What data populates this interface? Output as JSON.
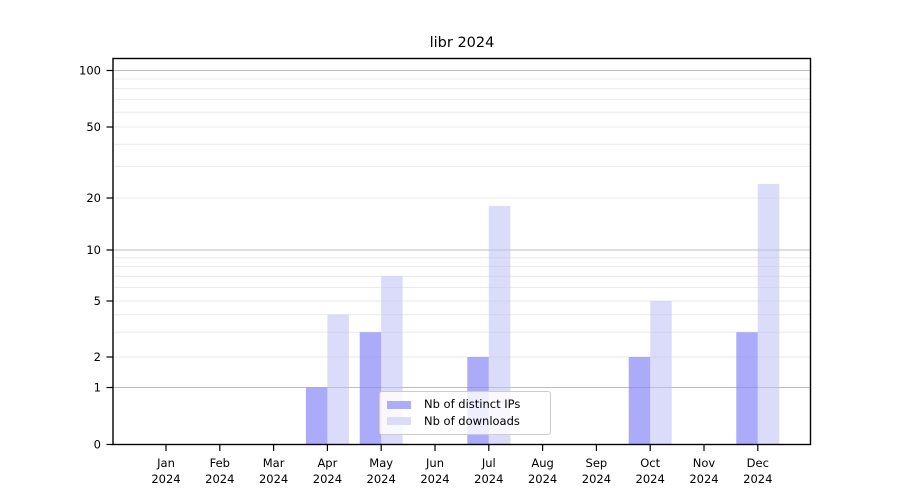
{
  "chart_data": {
    "type": "bar",
    "title": "libr 2024",
    "x_categories": [
      {
        "month": "Jan",
        "year": "2024"
      },
      {
        "month": "Feb",
        "year": "2024"
      },
      {
        "month": "Mar",
        "year": "2024"
      },
      {
        "month": "Apr",
        "year": "2024"
      },
      {
        "month": "May",
        "year": "2024"
      },
      {
        "month": "Jun",
        "year": "2024"
      },
      {
        "month": "Jul",
        "year": "2024"
      },
      {
        "month": "Aug",
        "year": "2024"
      },
      {
        "month": "Sep",
        "year": "2024"
      },
      {
        "month": "Oct",
        "year": "2024"
      },
      {
        "month": "Nov",
        "year": "2024"
      },
      {
        "month": "Dec",
        "year": "2024"
      }
    ],
    "series": [
      {
        "name": "Nb of distinct IPs",
        "color": "#acacfa",
        "fill": "rgba(136,136,248,0.7)",
        "values": [
          0,
          0,
          0,
          1,
          3,
          0,
          2,
          0,
          0,
          2,
          0,
          3
        ]
      },
      {
        "name": "Nb of downloads",
        "color": "#dbdbfa",
        "fill": "rgba(190,190,246,0.55)",
        "values": [
          0,
          0,
          0,
          4,
          7,
          0,
          18,
          0,
          0,
          5,
          0,
          24
        ]
      }
    ],
    "yaxis": {
      "scale": "symlog",
      "ticks": [
        0,
        1,
        2,
        5,
        10,
        20,
        50,
        100
      ],
      "major_gridlines": [
        1,
        10,
        100
      ],
      "minor_gridlines": [
        2,
        3,
        4,
        5,
        6,
        7,
        8,
        9,
        20,
        30,
        40,
        50,
        60,
        70,
        80,
        90
      ],
      "range": [
        0,
        120
      ],
      "grid": true
    },
    "legend_position": "lower center"
  },
  "colors": {
    "background": "#ffffff",
    "spine": "#000000",
    "grid_major": "#bdbdbd",
    "grid_minor": "#e8e8e8",
    "tick_text": "#000000",
    "legend_border": "#cccccc"
  }
}
